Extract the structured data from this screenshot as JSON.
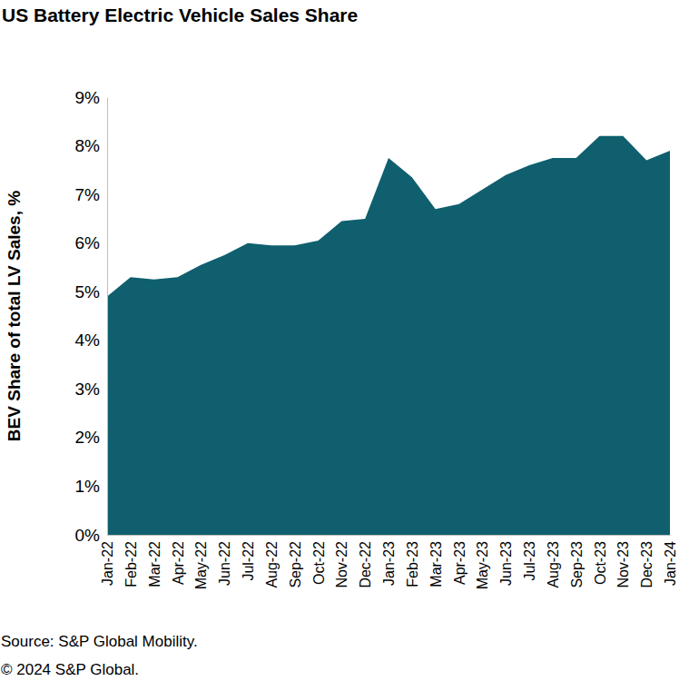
{
  "chart_data": {
    "type": "area",
    "title": "US Battery Electric Vehicle Sales Share",
    "y_label": "BEV Share of total LV Sales, %",
    "annotations": [
      "Source: S&P Global Mobility.",
      "© 2024 S&P Global."
    ],
    "categories": [
      "Jan-22",
      "Feb-22",
      "Mar-22",
      "Apr-22",
      "May-22",
      "Jun-22",
      "Jul-22",
      "Aug-22",
      "Sep-22",
      "Oct-22",
      "Nov-22",
      "Dec-22",
      "Jan-23",
      "Feb-23",
      "Mar-23",
      "Apr-23",
      "May-23",
      "Jun-23",
      "Jul-23",
      "Aug-23",
      "Sep-23",
      "Oct-23",
      "Nov-23",
      "Dec-23",
      "Jan-24"
    ],
    "values": [
      4.9,
      5.3,
      5.25,
      5.3,
      5.55,
      5.75,
      6.0,
      5.95,
      5.95,
      6.05,
      6.45,
      6.5,
      7.75,
      7.35,
      6.7,
      6.8,
      7.1,
      7.4,
      7.6,
      7.75,
      7.75,
      8.2,
      8.2,
      7.7,
      7.9
    ],
    "color": "#0f5f6e",
    "ylim": [
      0,
      9
    ],
    "yticks": [
      {
        "value": 0,
        "label": "0%"
      },
      {
        "value": 1,
        "label": "1%"
      },
      {
        "value": 2,
        "label": "2%"
      },
      {
        "value": 3,
        "label": "3%"
      },
      {
        "value": 4,
        "label": "4%"
      },
      {
        "value": 5,
        "label": "5%"
      },
      {
        "value": 6,
        "label": "6%"
      },
      {
        "value": 7,
        "label": "7%"
      },
      {
        "value": 8,
        "label": "8%"
      },
      {
        "value": 9,
        "label": "9%"
      }
    ],
    "grid": false
  }
}
